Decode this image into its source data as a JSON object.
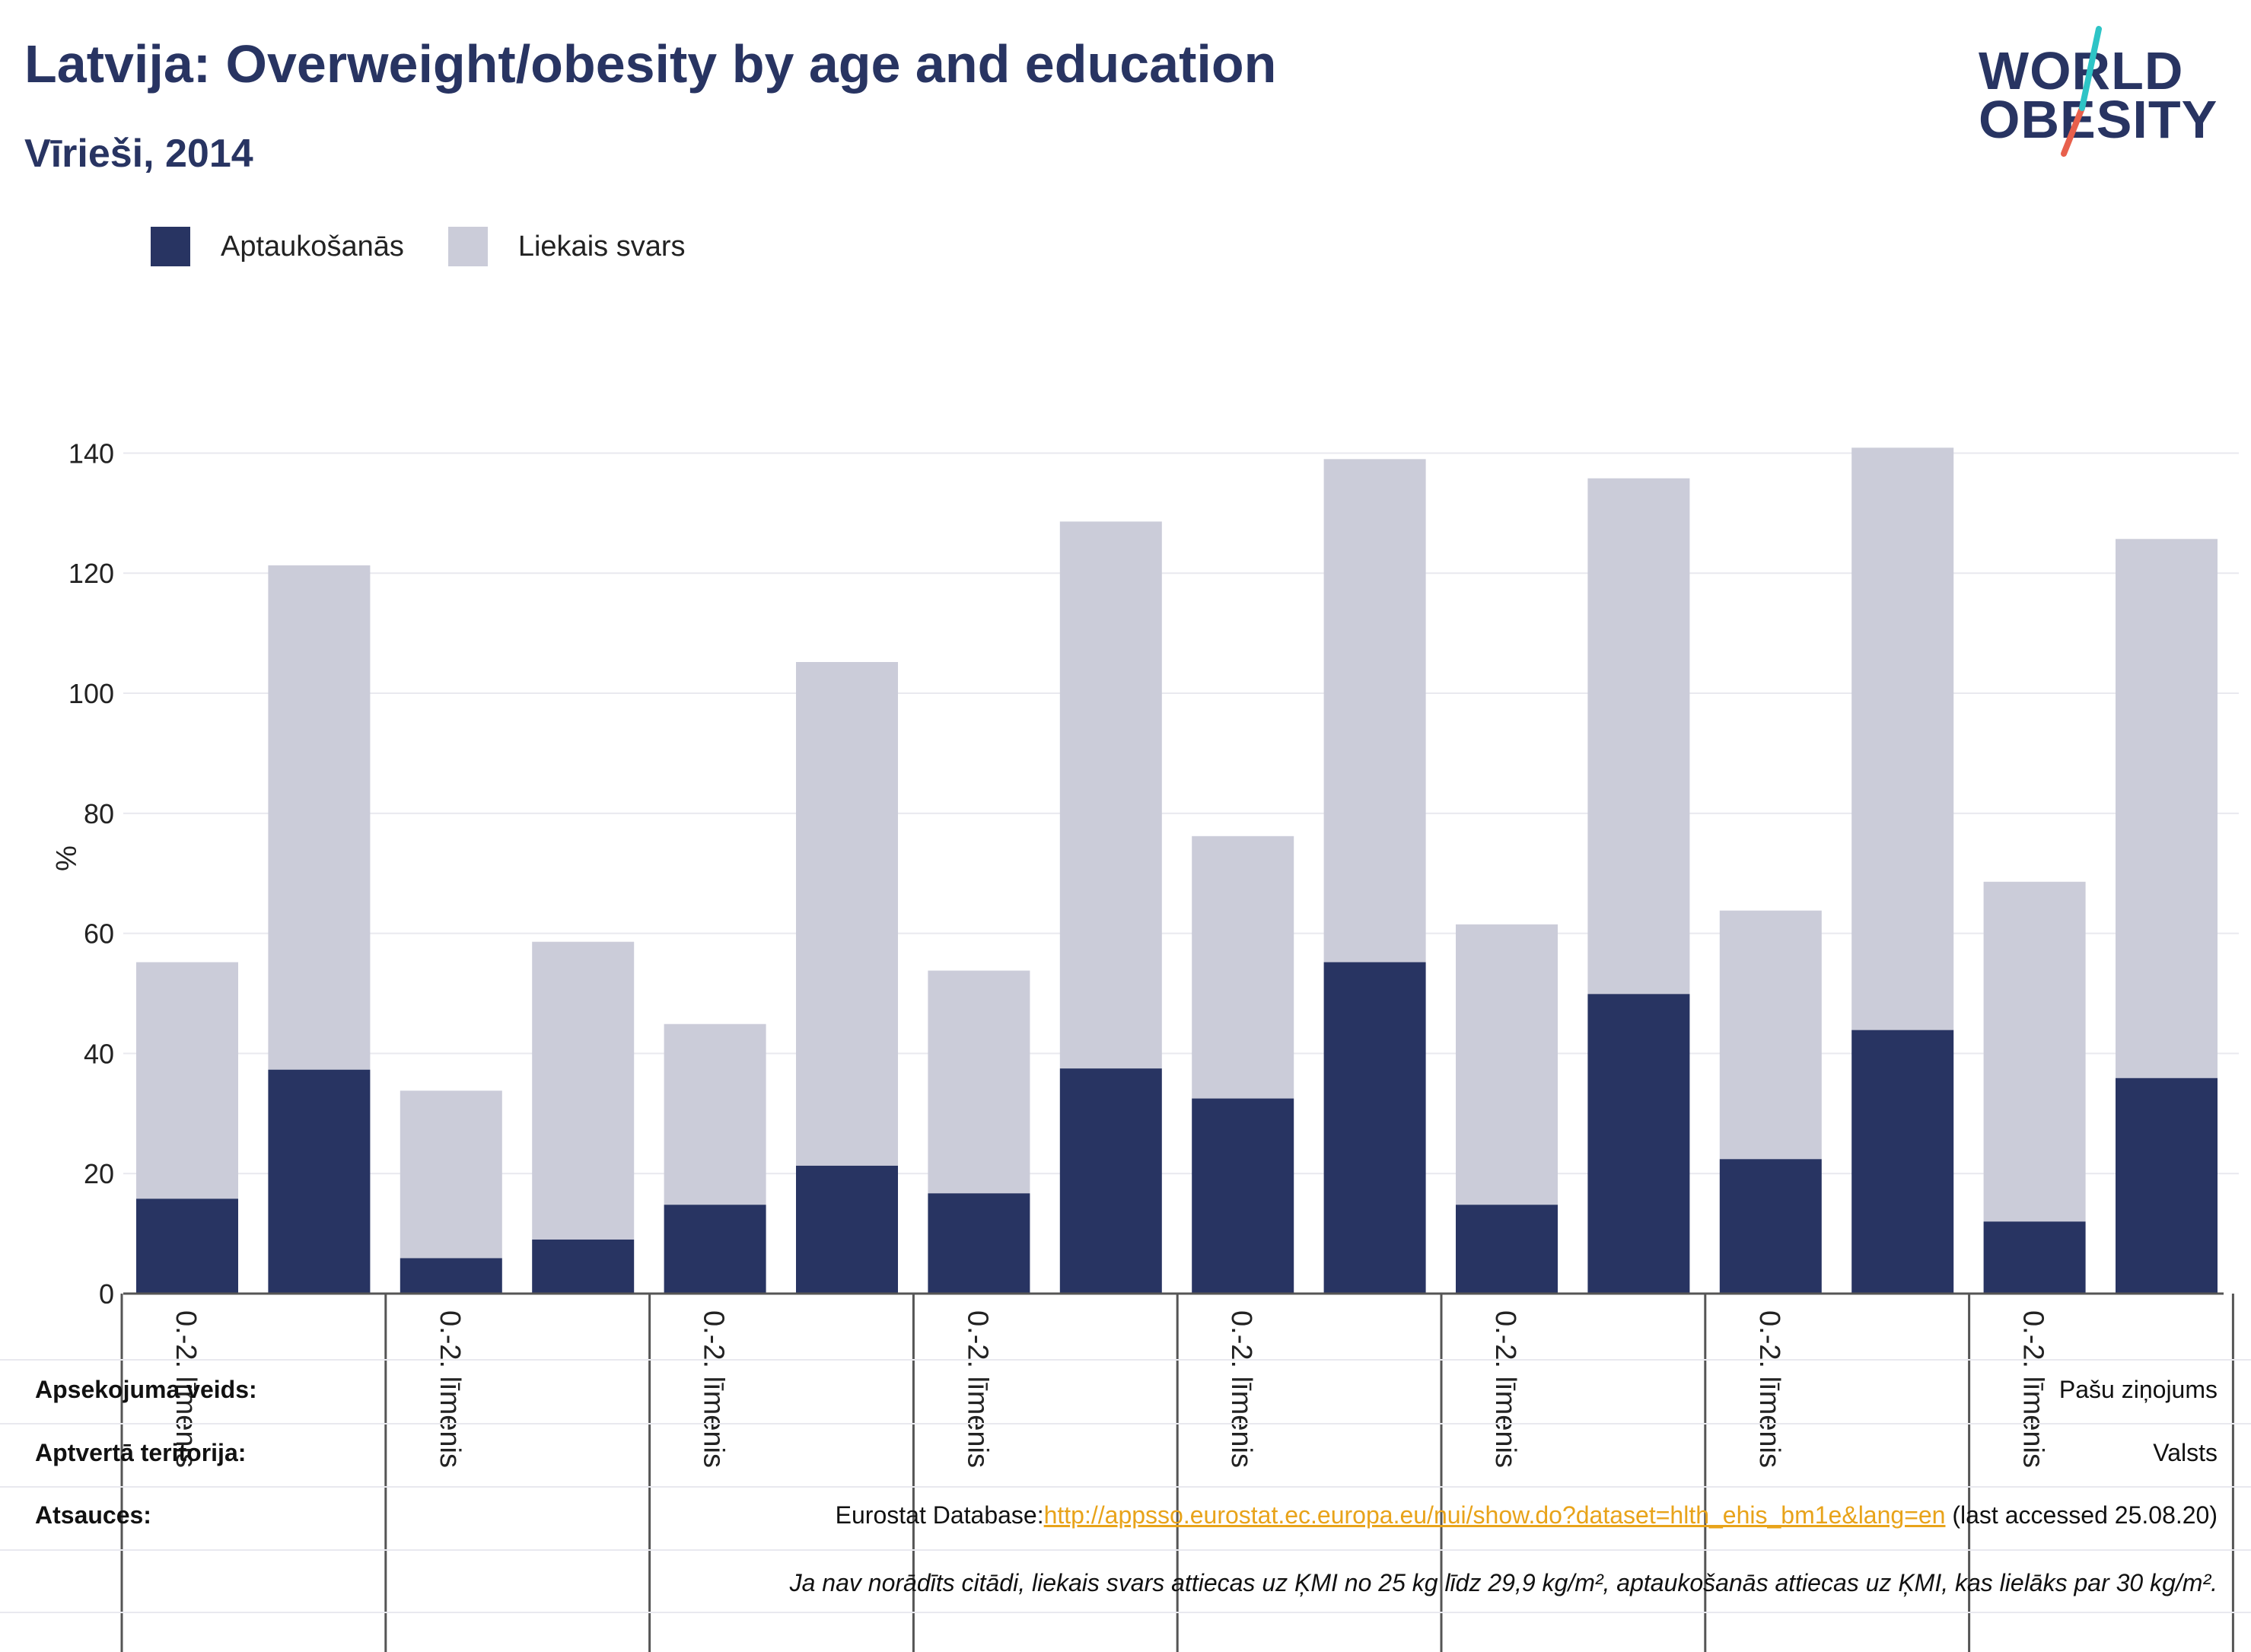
{
  "header": {
    "title": "Latvija: Overweight/obesity by age and education",
    "subtitle": "Vīrieši, 2014"
  },
  "logo": {
    "line1": "WORLD",
    "line2": "OBESITY",
    "brand_color": "#283462",
    "slash_colors": [
      "#2ec4c6",
      "#e8604c"
    ]
  },
  "legend": [
    {
      "label": "Aptaukošanās",
      "color": "#283462"
    },
    {
      "label": "Liekais svars",
      "color": "#cbccd9"
    }
  ],
  "chart_data": {
    "type": "bar",
    "stacked": true,
    "ylabel": "%",
    "ylim": [
      0,
      145
    ],
    "yticks": [
      0,
      20,
      40,
      60,
      80,
      100,
      120,
      140
    ],
    "grid": true,
    "legend_position": "top-left",
    "categories": [
      "0.-2. līmenis",
      "",
      "0.-2. līmenis",
      "",
      "0.-2. līmenis",
      "",
      "0.-2. līmenis",
      "",
      "0.-2. līmenis",
      "",
      "0.-2. līmenis",
      "",
      "0.-2. līmenis",
      "",
      "0.-2. līmenis",
      ""
    ],
    "series": [
      {
        "name": "Aptaukošanās",
        "color": "#283462",
        "values": [
          15.8,
          37.3,
          5.9,
          9.0,
          14.8,
          21.3,
          16.7,
          37.5,
          32.5,
          55.2,
          14.8,
          49.9,
          22.4,
          43.9,
          12.0,
          35.9
        ]
      },
      {
        "name": "Liekais svars",
        "color": "#cbccd9",
        "values": [
          39.4,
          84.0,
          27.9,
          49.6,
          30.1,
          83.9,
          37.1,
          91.1,
          43.7,
          83.8,
          46.7,
          85.9,
          41.4,
          97.0,
          56.6,
          89.8
        ]
      }
    ]
  },
  "info": {
    "rows": [
      {
        "key": "Apsekojuma veids:",
        "value": "Pašu ziņojums"
      },
      {
        "key": "Aptvertā teritorija:",
        "value": "Valsts"
      }
    ],
    "source_key": "Atsauces:",
    "source_prefix": "Eurostat Database:",
    "source_link": "http://appsso.eurostat.ec.europa.eu/nui/show.do?dataset=hlth_ehis_bm1e&lang=en",
    "source_suffix": " (last accessed 25.08.20)",
    "note": "Ja nav norādīts citādi, liekais svars attiecas uz ĶMI no 25 kg līdz 29,9 kg/m², aptaukošanās attiecas uz ĶMI, kas lielāks par 30 kg/m²."
  }
}
